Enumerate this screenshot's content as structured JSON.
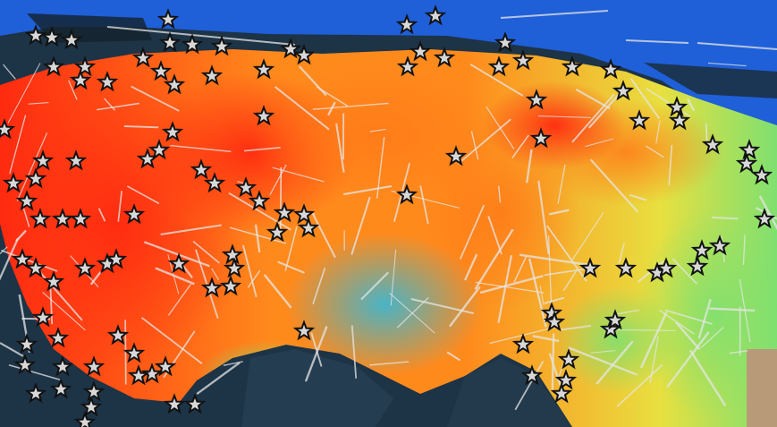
{
  "map": {
    "type": "heatmap-overlay",
    "legend": "",
    "colors": {
      "deep_sea": "#1d3346",
      "shallow_sea": "#1f5fd8",
      "high": "#ff2a10",
      "mid_high": "#ff8a1c",
      "mid": "#e8e040",
      "low_mid": "#7fe070",
      "low": "#35b8d8",
      "fault_lines": "#e6e6e6",
      "star_marker_fill": "#d8d8d8",
      "star_marker_outline": "#111111"
    },
    "icons": {
      "marker": "star-icon",
      "faults": "fault-line"
    }
  }
}
